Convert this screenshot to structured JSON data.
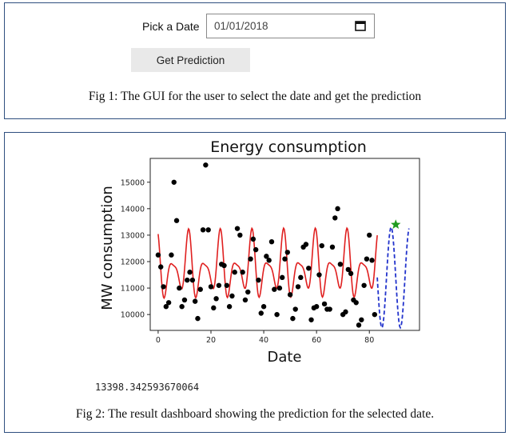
{
  "date_picker": {
    "label": "Pick a Date",
    "value": "01/01/2018",
    "icon": "calendar-icon"
  },
  "predict_button": {
    "label": "Get Prediction"
  },
  "caption1": "Fig 1: The GUI for the user to select the date and get the prediction",
  "output": {
    "value_text": "13398.342593670064"
  },
  "caption2": "Fig 2: The result dashboard showing the prediction for the selected date.",
  "chart_data": {
    "type": "scatter",
    "title": "Energy consumption",
    "xlabel": "Date",
    "ylabel": "MW consumption",
    "xticks": [
      0,
      20,
      40,
      60,
      80
    ],
    "yticks": [
      10000,
      11000,
      12000,
      13000,
      14000,
      15000
    ],
    "xlim": [
      -3,
      99
    ],
    "ylim": [
      9400,
      15900
    ],
    "grid": false,
    "colors": {
      "points": "#000000",
      "fit": "#e02020",
      "forecast": "#2233cc",
      "prediction": "#1f9b1f"
    },
    "series": [
      {
        "kind": "points",
        "x": [
          0,
          1,
          2,
          3,
          4,
          5,
          6,
          7,
          8,
          9,
          10,
          11,
          12,
          13,
          14,
          15,
          16,
          17,
          18,
          19,
          20,
          21,
          22,
          23,
          24,
          25,
          26,
          27,
          28,
          29,
          30,
          31,
          32,
          33,
          34,
          35,
          36,
          37,
          38,
          39,
          40,
          41,
          42,
          43,
          44,
          45,
          46,
          47,
          48,
          49,
          50,
          51,
          52,
          53,
          54,
          55,
          56,
          57,
          58,
          59,
          60,
          61,
          62,
          63,
          64,
          65,
          66,
          67,
          68,
          69,
          70,
          71,
          72,
          73,
          74,
          75,
          76,
          77,
          78,
          79,
          80,
          81,
          82
        ],
        "y": [
          12250,
          11800,
          11050,
          10300,
          10450,
          12250,
          15000,
          13550,
          11000,
          10300,
          10550,
          11300,
          11600,
          11300,
          10500,
          9850,
          10950,
          13200,
          15650,
          13200,
          11050,
          10250,
          10600,
          11100,
          11900,
          11850,
          11100,
          10300,
          10700,
          11600,
          13250,
          13000,
          11600,
          10550,
          10850,
          12100,
          12850,
          12450,
          11300,
          10050,
          10300,
          12200,
          12050,
          12750,
          10950,
          10000,
          11000,
          11400,
          12100,
          12350,
          10750,
          9850,
          10200,
          11050,
          11400,
          12550,
          12650,
          11750,
          9800,
          10250,
          10300,
          11500,
          12600,
          10400,
          10200,
          10200,
          12550,
          13650,
          14000,
          11900,
          10000,
          10100,
          11700,
          11550,
          10550,
          10450,
          9600,
          9800,
          11100,
          12100,
          13000,
          12050,
          10000
        ]
      },
      {
        "kind": "fit",
        "name": "fit"
      },
      {
        "kind": "forecast",
        "name": "forecast"
      },
      {
        "kind": "prediction",
        "x": [
          90
        ],
        "y": [
          13398
        ]
      }
    ]
  }
}
